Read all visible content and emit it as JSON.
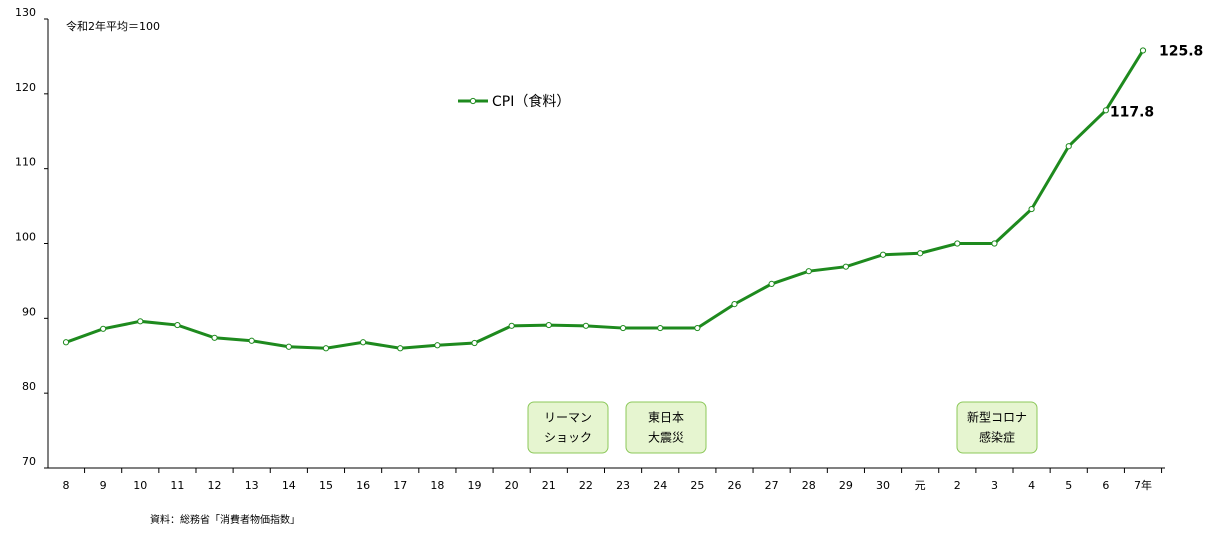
{
  "chart_data": {
    "type": "line",
    "note": "令和2年平均＝100",
    "source": "資料：総務省「消費者物価指数」",
    "categories": [
      "8",
      "9",
      "10",
      "11",
      "12",
      "13",
      "14",
      "15",
      "16",
      "17",
      "18",
      "19",
      "20",
      "21",
      "22",
      "23",
      "24",
      "25",
      "26",
      "27",
      "28",
      "29",
      "30",
      "元",
      "2",
      "3",
      "4",
      "5",
      "6",
      "7年"
    ],
    "series": [
      {
        "name": "CPI（食料）",
        "color": "#1e8a1e",
        "values": [
          86.8,
          88.6,
          89.6,
          89.1,
          87.4,
          87.0,
          86.2,
          86.0,
          86.8,
          86.0,
          86.4,
          86.7,
          89.0,
          89.1,
          89.0,
          88.7,
          88.7,
          88.7,
          91.9,
          94.6,
          96.3,
          96.9,
          98.5,
          98.7,
          100.0,
          100.0,
          104.6,
          113.0,
          117.8,
          125.8
        ],
        "value_labels": [
          null,
          null,
          null,
          null,
          null,
          null,
          null,
          null,
          null,
          null,
          null,
          null,
          null,
          null,
          null,
          null,
          null,
          null,
          null,
          null,
          null,
          null,
          null,
          null,
          null,
          null,
          null,
          null,
          "117.8",
          "125.8"
        ]
      }
    ],
    "annotations": [
      {
        "lines": [
          "リーマン",
          "ショック"
        ]
      },
      {
        "lines": [
          "東日本",
          "大震災"
        ]
      },
      {
        "lines": [
          "新型コロナ",
          "感染症"
        ]
      }
    ],
    "ylim": [
      70,
      130
    ],
    "yticks": [
      70,
      80,
      90,
      100,
      110,
      120,
      130
    ],
    "grid": false
  }
}
